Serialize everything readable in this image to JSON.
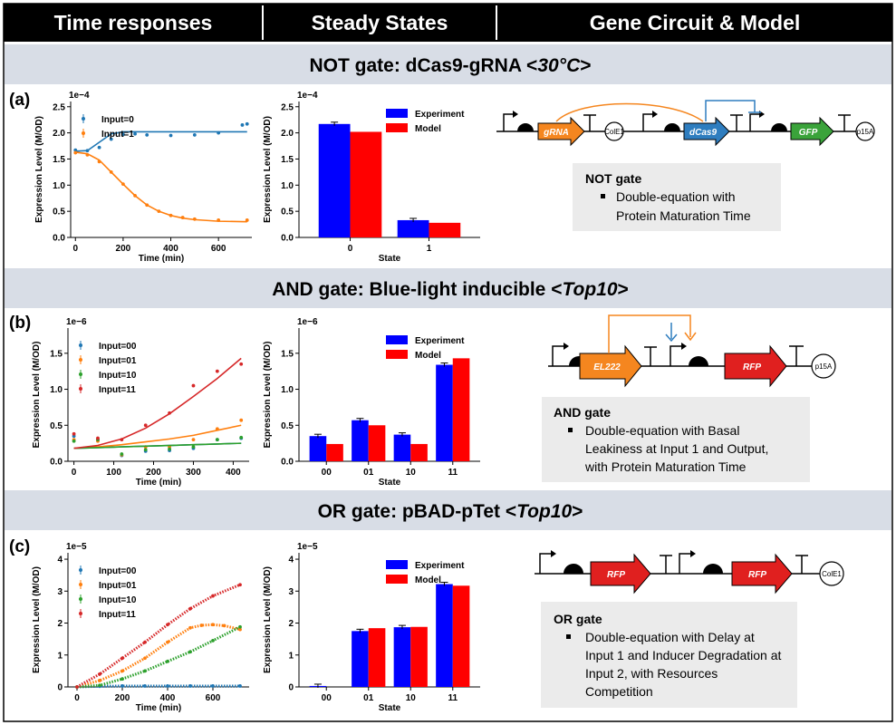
{
  "header": {
    "columns": [
      "Time responses",
      "Steady States",
      "Gene Circuit & Model"
    ]
  },
  "sections": [
    {
      "label": "(a)",
      "title_prefix": "NOT gate: dCas9-gRNA <",
      "title_italic": "30°C",
      "title_suffix": ">"
    },
    {
      "label": "(b)",
      "title_prefix": "AND gate: Blue-light inducible <",
      "title_italic": "Top10",
      "title_suffix": ">"
    },
    {
      "label": "(c)",
      "title_prefix": "OR gate: pBAD-pTet <",
      "title_italic": "Top10",
      "title_suffix": ">"
    }
  ],
  "colors": {
    "header_bg": "#000000",
    "band_bg": "#d8dde6",
    "model_box_bg": "#ebebeb",
    "experiment": "#0000ff",
    "model": "#ff0000",
    "blue_line": "#1f77b4",
    "orange_line": "#ff7f0e",
    "green_line": "#2ca02c",
    "red_line": "#d62728",
    "gene_orange": "#f5861f",
    "gene_blue": "#2e7dbf",
    "gene_green": "#3aa33a",
    "gene_red": "#e0201f"
  },
  "chart_data": [
    {
      "panel": "a",
      "type": "line",
      "ylabel": "Expression Level (M/OD)",
      "xlabel": "Time (min)",
      "exponent": "1e−4",
      "xlim": [
        -20,
        740
      ],
      "ylim": [
        0.0,
        2.6
      ],
      "xticks": [
        0,
        200,
        400,
        600
      ],
      "yticks": [
        0.0,
        0.5,
        1.0,
        1.5,
        2.0,
        2.5
      ],
      "legend_position": "upper-left",
      "series": [
        {
          "name": "Input=0",
          "color_key": "blue_line",
          "x": [
            0,
            50,
            100,
            150,
            200,
            250,
            300,
            400,
            500,
            600,
            700,
            720
          ],
          "y": [
            1.67,
            1.66,
            1.72,
            1.88,
            1.97,
            1.98,
            1.96,
            1.95,
            1.96,
            2.0,
            2.15,
            2.17
          ],
          "model": [
            1.65,
            1.66,
            1.82,
            1.98,
            2.02,
            2.02,
            2.02,
            2.02,
            2.02,
            2.02,
            2.02,
            2.02
          ]
        },
        {
          "name": "Input=1",
          "color_key": "orange_line",
          "x": [
            0,
            50,
            100,
            150,
            200,
            250,
            300,
            350,
            400,
            450,
            500,
            600,
            720
          ],
          "y": [
            1.62,
            1.58,
            1.45,
            1.25,
            1.02,
            0.8,
            0.62,
            0.5,
            0.42,
            0.38,
            0.35,
            0.33,
            0.33
          ],
          "model": [
            1.63,
            1.6,
            1.48,
            1.25,
            1.02,
            0.8,
            0.62,
            0.5,
            0.42,
            0.37,
            0.34,
            0.31,
            0.3
          ]
        }
      ]
    },
    {
      "panel": "a",
      "type": "bar",
      "ylabel": "Expression Level (M/OD)",
      "xlabel": "State",
      "exponent": "1e−4",
      "ylim": [
        0,
        2.6
      ],
      "yticks": [
        0.0,
        0.5,
        1.0,
        1.5,
        2.0,
        2.5
      ],
      "categories": [
        "0",
        "1"
      ],
      "series": [
        {
          "name": "Experiment",
          "color_key": "experiment",
          "values": [
            2.17,
            0.33
          ]
        },
        {
          "name": "Model",
          "color_key": "model",
          "values": [
            2.02,
            0.28
          ]
        }
      ]
    },
    {
      "panel": "b",
      "type": "scatter",
      "ylabel": "Expression Level (M/OD)",
      "xlabel": "Time (min)",
      "exponent": "1e−6",
      "xlim": [
        -15,
        440
      ],
      "ylim": [
        0.0,
        1.85
      ],
      "xticks": [
        0,
        100,
        200,
        300,
        400
      ],
      "yticks": [
        0.0,
        0.5,
        1.0,
        1.5
      ],
      "series": [
        {
          "name": "Input=00",
          "color_key": "blue_line",
          "x": [
            0,
            60,
            120,
            180,
            240,
            300,
            360,
            420
          ],
          "y": [
            0.35,
            0.3,
            0.08,
            0.14,
            0.15,
            0.18,
            0.3,
            0.32
          ],
          "model": [
            0.18,
            0.19,
            0.2,
            0.21,
            0.22,
            0.23,
            0.24,
            0.25
          ]
        },
        {
          "name": "Input=01",
          "color_key": "orange_line",
          "x": [
            0,
            60,
            120,
            180,
            240,
            300,
            360,
            420
          ],
          "y": [
            0.3,
            0.28,
            0.09,
            0.2,
            0.2,
            0.3,
            0.45,
            0.57
          ],
          "model": [
            0.18,
            0.2,
            0.23,
            0.27,
            0.31,
            0.36,
            0.43,
            0.5
          ]
        },
        {
          "name": "Input=10",
          "color_key": "green_line",
          "x": [
            0,
            60,
            120,
            180,
            240,
            300,
            360,
            420
          ],
          "y": [
            0.28,
            0.3,
            0.1,
            0.16,
            0.17,
            0.2,
            0.3,
            0.33
          ],
          "model": [
            0.18,
            0.19,
            0.2,
            0.21,
            0.22,
            0.23,
            0.24,
            0.25
          ]
        },
        {
          "name": "Input=11",
          "color_key": "red_line",
          "x": [
            0,
            60,
            120,
            180,
            240,
            300,
            360,
            420
          ],
          "y": [
            0.38,
            0.32,
            0.3,
            0.5,
            0.67,
            1.05,
            1.25,
            1.35
          ],
          "model": [
            0.18,
            0.22,
            0.31,
            0.46,
            0.66,
            0.9,
            1.15,
            1.43
          ]
        }
      ]
    },
    {
      "panel": "b",
      "type": "bar",
      "ylabel": "Expression Level (M/OD)",
      "xlabel": "State",
      "exponent": "1e−6",
      "ylim": [
        0,
        1.85
      ],
      "yticks": [
        0.0,
        0.5,
        1.0,
        1.5
      ],
      "categories": [
        "00",
        "01",
        "10",
        "11"
      ],
      "series": [
        {
          "name": "Experiment",
          "color_key": "experiment",
          "values": [
            0.35,
            0.57,
            0.37,
            1.34
          ]
        },
        {
          "name": "Model",
          "color_key": "model",
          "values": [
            0.24,
            0.5,
            0.24,
            1.43
          ]
        }
      ]
    },
    {
      "panel": "c",
      "type": "line",
      "ylabel": "Expression Level (M/OD)",
      "xlabel": "Time (min)",
      "exponent": "1e−5",
      "xlim": [
        -40,
        760
      ],
      "ylim": [
        0,
        4.2
      ],
      "xticks": [
        0,
        200,
        400,
        600
      ],
      "yticks": [
        0,
        1,
        2,
        3,
        4
      ],
      "series": [
        {
          "name": "Input=00",
          "color_key": "blue_line",
          "x": [
            0,
            100,
            200,
            300,
            400,
            500,
            600,
            720
          ],
          "y": [
            0,
            0.02,
            0.03,
            0.03,
            0.03,
            0.03,
            0.03,
            0.03
          ]
        },
        {
          "name": "Input=01",
          "color_key": "orange_line",
          "x": [
            0,
            100,
            200,
            300,
            400,
            500,
            550,
            600,
            650,
            720
          ],
          "y": [
            0,
            0.2,
            0.5,
            0.9,
            1.4,
            1.85,
            1.93,
            1.95,
            1.92,
            1.8
          ]
        },
        {
          "name": "Input=10",
          "color_key": "green_line",
          "x": [
            0,
            100,
            200,
            300,
            400,
            500,
            600,
            720
          ],
          "y": [
            0,
            0.05,
            0.25,
            0.5,
            0.8,
            1.1,
            1.45,
            1.88
          ]
        },
        {
          "name": "Input=11",
          "color_key": "red_line",
          "x": [
            0,
            100,
            200,
            300,
            400,
            500,
            600,
            720
          ],
          "y": [
            0,
            0.4,
            0.9,
            1.4,
            1.95,
            2.45,
            2.85,
            3.2
          ]
        }
      ]
    },
    {
      "panel": "c",
      "type": "bar",
      "ylabel": "Expression Level (M/OD)",
      "xlabel": "State",
      "exponent": "1e−5",
      "ylim": [
        0,
        4.2
      ],
      "yticks": [
        0,
        1,
        2,
        3,
        4
      ],
      "categories": [
        "00",
        "01",
        "10",
        "11"
      ],
      "series": [
        {
          "name": "Experiment",
          "color_key": "experiment",
          "values": [
            0.03,
            1.75,
            1.87,
            3.22
          ]
        },
        {
          "name": "Model",
          "color_key": "model",
          "values": [
            0,
            1.84,
            1.88,
            3.17
          ]
        }
      ]
    }
  ],
  "circuits": [
    {
      "genes": [
        "gRNA",
        "dCas9",
        "GFP"
      ],
      "origins": [
        "ColE1",
        "p15A"
      ]
    },
    {
      "genes": [
        "EL222",
        "RFP"
      ],
      "origins": [
        "p15A"
      ]
    },
    {
      "genes": [
        "RFP",
        "RFP"
      ],
      "origins": [
        "ColE1"
      ]
    }
  ],
  "models": [
    {
      "title": "NOT gate",
      "lines": [
        "Double-equation with",
        "Protein Maturation Time"
      ]
    },
    {
      "title": "AND gate",
      "lines": [
        "Double-equation with Basal",
        "Leakiness at Input 1 and Output,",
        "with Protein Maturation Time"
      ]
    },
    {
      "title": "OR gate",
      "lines": [
        "Double-equation with Delay at",
        "Input 1 and Inducer Degradation at",
        "Input 2, with Resources",
        "Competition"
      ]
    }
  ]
}
